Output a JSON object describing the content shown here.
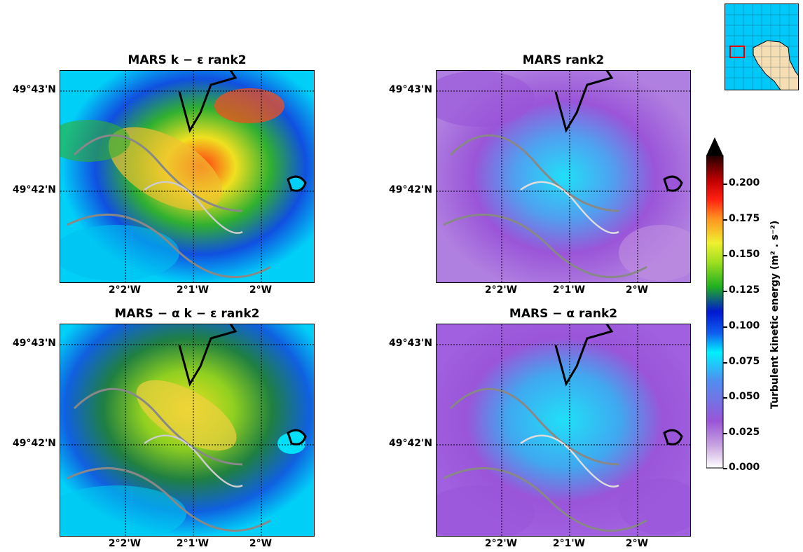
{
  "panels": [
    {
      "title": "MARS  k − ε  rank2",
      "scheme": "rainbow"
    },
    {
      "title": "MARS rank2",
      "scheme": "purple"
    },
    {
      "title": "MARS − α  k − ε  rank2",
      "scheme": "rainbow2"
    },
    {
      "title": "MARS − α rank2",
      "scheme": "purple2"
    }
  ],
  "axes": {
    "lat_labels": [
      "49°43'N",
      "49°42'N"
    ],
    "lon_labels": [
      "2°2'W",
      "2°1'W",
      "2°W"
    ]
  },
  "colorbar": {
    "label": "Turbulent kinetic energy (m² . s⁻²)",
    "ticks": [
      "0.200",
      "0.175",
      "0.150",
      "0.125",
      "0.100",
      "0.075",
      "0.050",
      "0.025",
      "0.000"
    ],
    "min": 0.0,
    "max": 0.2,
    "extend": "max",
    "colors": [
      "#ffffff",
      "#c9a6e0",
      "#9a55d8",
      "#4f8ff0",
      "#00f0ff",
      "#1060f0",
      "#0018d0",
      "#20b020",
      "#a0e020",
      "#f0f030",
      "#ff9020",
      "#ff2010",
      "#c00000",
      "#600000",
      "#000000"
    ]
  },
  "inset": {
    "sea_color": "#00c8f8",
    "land_color": "#f5deb3",
    "box_color": "#e00000"
  }
}
